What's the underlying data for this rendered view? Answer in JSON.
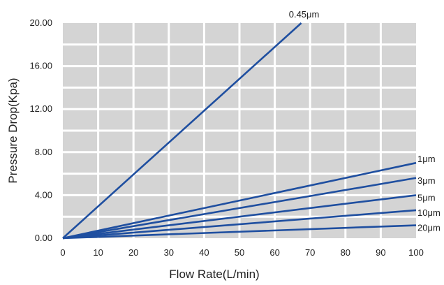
{
  "chart_data": {
    "type": "line",
    "title": "",
    "xlabel": "Flow Rate(L/min)",
    "ylabel": "Pressure Drop(Kpa)",
    "xlim": [
      0,
      100
    ],
    "ylim": [
      0,
      20
    ],
    "x_ticks": [
      "0",
      "10",
      "20",
      "30",
      "40",
      "50",
      "60",
      "70",
      "80",
      "90",
      "100"
    ],
    "y_ticks": [
      "0.00",
      "4.00",
      "8.00",
      "12.00",
      "16.00",
      "20.00"
    ],
    "grid": true,
    "plot_background": "#d4d4d4",
    "grid_color": "#ffffff",
    "line_color": "#1f4fa0",
    "series": [
      {
        "name": "0.45μm",
        "x": [
          0,
          67.5
        ],
        "y": [
          0,
          20.0
        ]
      },
      {
        "name": "1μm",
        "x": [
          0,
          100
        ],
        "y": [
          0,
          7.0
        ]
      },
      {
        "name": "3μm",
        "x": [
          0,
          100
        ],
        "y": [
          0,
          5.6
        ]
      },
      {
        "name": "5μm",
        "x": [
          0,
          100
        ],
        "y": [
          0,
          4.0
        ]
      },
      {
        "name": "10μm",
        "x": [
          0,
          100
        ],
        "y": [
          0,
          2.6
        ]
      },
      {
        "name": "20μm",
        "x": [
          0,
          100
        ],
        "y": [
          0,
          1.2
        ]
      }
    ]
  }
}
